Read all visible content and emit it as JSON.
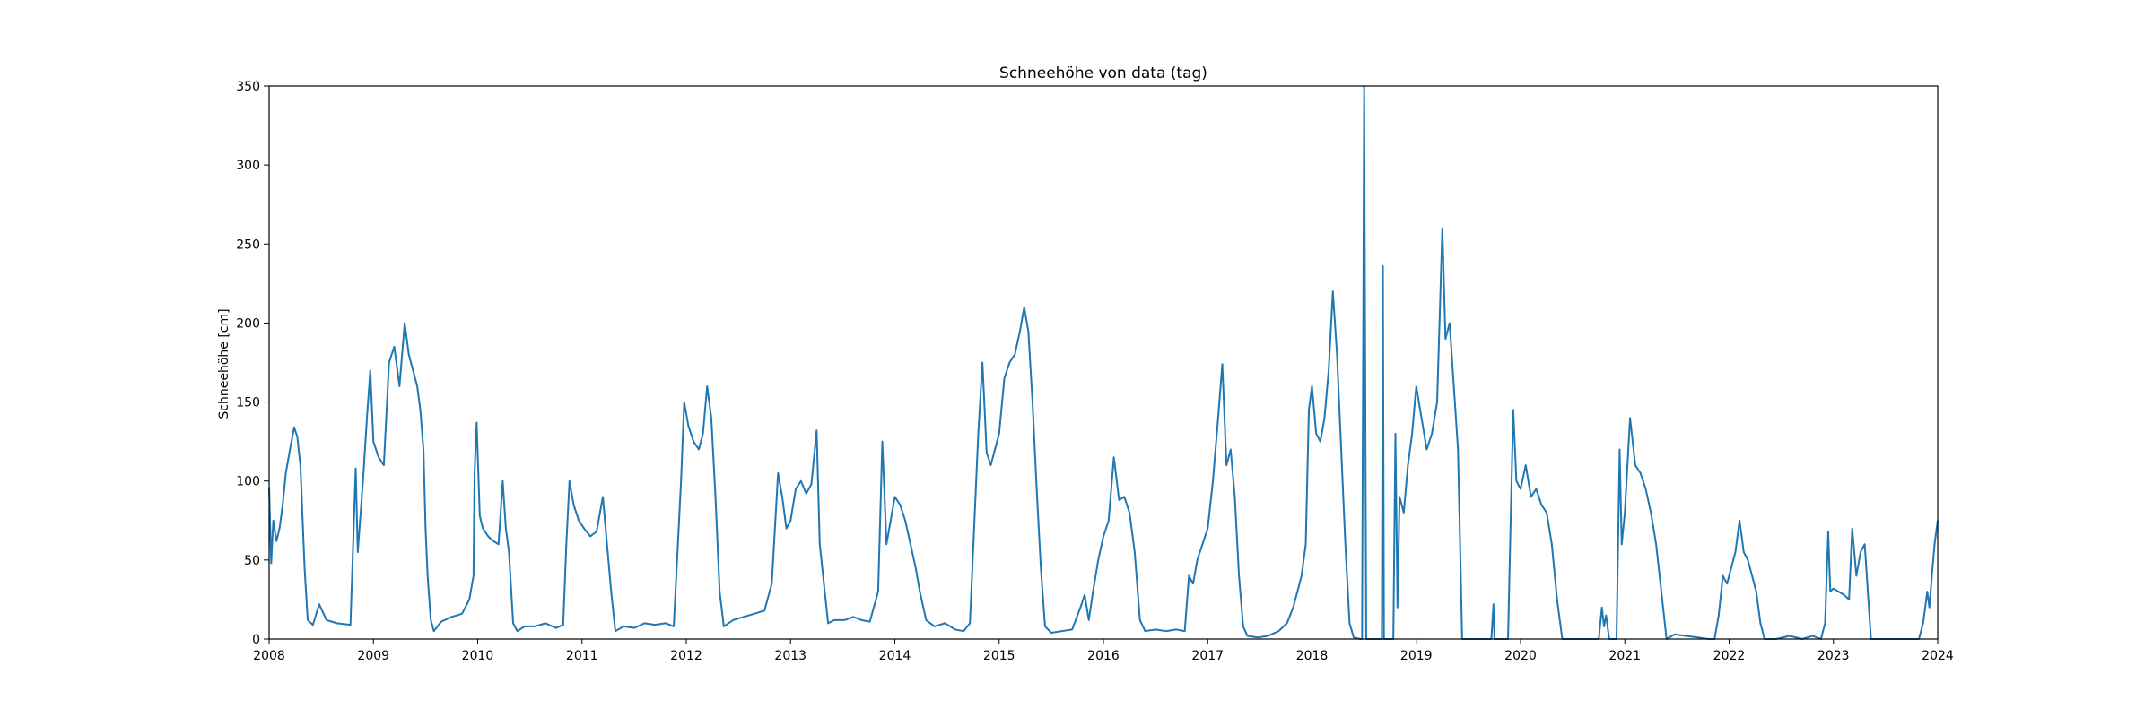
{
  "chart_data": {
    "type": "line",
    "title": "Schneehöhe von data (tag)",
    "xlabel": "",
    "ylabel": "Schneehöhe [cm]",
    "xlim": [
      2008,
      2024
    ],
    "ylim": [
      0,
      350
    ],
    "x_ticks": [
      "2008",
      "2009",
      "2010",
      "2011",
      "2012",
      "2013",
      "2014",
      "2015",
      "2016",
      "2017",
      "2018",
      "2019",
      "2020",
      "2021",
      "2022",
      "2023",
      "2024"
    ],
    "y_ticks": [
      "0",
      "50",
      "100",
      "150",
      "200",
      "250",
      "300",
      "350"
    ],
    "grid": false,
    "legend": "none",
    "series": [
      {
        "color": "#1f77b4",
        "points": [
          [
            2008.0,
            96
          ],
          [
            2008.02,
            48
          ],
          [
            2008.04,
            75
          ],
          [
            2008.07,
            62
          ],
          [
            2008.1,
            70
          ],
          [
            2008.13,
            85
          ],
          [
            2008.16,
            105
          ],
          [
            2008.2,
            120
          ],
          [
            2008.24,
            134
          ],
          [
            2008.27,
            128
          ],
          [
            2008.3,
            110
          ],
          [
            2008.34,
            45
          ],
          [
            2008.37,
            12
          ],
          [
            2008.42,
            9
          ],
          [
            2008.48,
            22
          ],
          [
            2008.55,
            12
          ],
          [
            2008.65,
            10
          ],
          [
            2008.78,
            9
          ],
          [
            2008.83,
            108
          ],
          [
            2008.85,
            55
          ],
          [
            2008.9,
            100
          ],
          [
            2008.94,
            142
          ],
          [
            2008.97,
            170
          ],
          [
            2009.0,
            125
          ],
          [
            2009.05,
            115
          ],
          [
            2009.1,
            110
          ],
          [
            2009.15,
            175
          ],
          [
            2009.2,
            185
          ],
          [
            2009.25,
            160
          ],
          [
            2009.3,
            200
          ],
          [
            2009.34,
            180
          ],
          [
            2009.38,
            170
          ],
          [
            2009.42,
            160
          ],
          [
            2009.45,
            145
          ],
          [
            2009.48,
            120
          ],
          [
            2009.5,
            70
          ],
          [
            2009.52,
            40
          ],
          [
            2009.55,
            12
          ],
          [
            2009.58,
            5
          ],
          [
            2009.65,
            11
          ],
          [
            2009.75,
            14
          ],
          [
            2009.85,
            16
          ],
          [
            2009.92,
            25
          ],
          [
            2009.96,
            40
          ],
          [
            2009.97,
            105
          ],
          [
            2009.99,
            137
          ],
          [
            2010.02,
            78
          ],
          [
            2010.05,
            70
          ],
          [
            2010.1,
            65
          ],
          [
            2010.15,
            62
          ],
          [
            2010.2,
            60
          ],
          [
            2010.24,
            100
          ],
          [
            2010.27,
            70
          ],
          [
            2010.3,
            55
          ],
          [
            2010.34,
            10
          ],
          [
            2010.38,
            5
          ],
          [
            2010.45,
            8
          ],
          [
            2010.55,
            8
          ],
          [
            2010.65,
            10
          ],
          [
            2010.75,
            7
          ],
          [
            2010.82,
            9
          ],
          [
            2010.85,
            60
          ],
          [
            2010.88,
            100
          ],
          [
            2010.92,
            85
          ],
          [
            2010.97,
            75
          ],
          [
            2011.02,
            70
          ],
          [
            2011.08,
            65
          ],
          [
            2011.14,
            68
          ],
          [
            2011.2,
            90
          ],
          [
            2011.24,
            60
          ],
          [
            2011.28,
            30
          ],
          [
            2011.32,
            5
          ],
          [
            2011.4,
            8
          ],
          [
            2011.5,
            7
          ],
          [
            2011.6,
            10
          ],
          [
            2011.7,
            9
          ],
          [
            2011.8,
            10
          ],
          [
            2011.88,
            8
          ],
          [
            2011.95,
            100
          ],
          [
            2011.98,
            150
          ],
          [
            2012.02,
            135
          ],
          [
            2012.07,
            125
          ],
          [
            2012.12,
            120
          ],
          [
            2012.16,
            130
          ],
          [
            2012.2,
            160
          ],
          [
            2012.24,
            140
          ],
          [
            2012.28,
            90
          ],
          [
            2012.32,
            30
          ],
          [
            2012.36,
            8
          ],
          [
            2012.45,
            12
          ],
          [
            2012.55,
            14
          ],
          [
            2012.65,
            16
          ],
          [
            2012.75,
            18
          ],
          [
            2012.82,
            35
          ],
          [
            2012.88,
            105
          ],
          [
            2012.92,
            90
          ],
          [
            2012.96,
            70
          ],
          [
            2013.0,
            75
          ],
          [
            2013.05,
            95
          ],
          [
            2013.1,
            100
          ],
          [
            2013.15,
            92
          ],
          [
            2013.2,
            98
          ],
          [
            2013.25,
            132
          ],
          [
            2013.28,
            60
          ],
          [
            2013.32,
            35
          ],
          [
            2013.36,
            10
          ],
          [
            2013.42,
            12
          ],
          [
            2013.52,
            12
          ],
          [
            2013.6,
            14
          ],
          [
            2013.68,
            12
          ],
          [
            2013.76,
            11
          ],
          [
            2013.84,
            30
          ],
          [
            2013.88,
            125
          ],
          [
            2013.92,
            60
          ],
          [
            2013.96,
            75
          ],
          [
            2014.0,
            90
          ],
          [
            2014.05,
            85
          ],
          [
            2014.1,
            75
          ],
          [
            2014.15,
            60
          ],
          [
            2014.2,
            45
          ],
          [
            2014.24,
            30
          ],
          [
            2014.3,
            12
          ],
          [
            2014.38,
            8
          ],
          [
            2014.48,
            10
          ],
          [
            2014.58,
            6
          ],
          [
            2014.66,
            5
          ],
          [
            2014.72,
            10
          ],
          [
            2014.8,
            130
          ],
          [
            2014.84,
            175
          ],
          [
            2014.88,
            118
          ],
          [
            2014.92,
            110
          ],
          [
            2014.96,
            120
          ],
          [
            2015.0,
            130
          ],
          [
            2015.05,
            165
          ],
          [
            2015.1,
            175
          ],
          [
            2015.15,
            180
          ],
          [
            2015.2,
            195
          ],
          [
            2015.24,
            210
          ],
          [
            2015.28,
            195
          ],
          [
            2015.32,
            150
          ],
          [
            2015.36,
            95
          ],
          [
            2015.4,
            45
          ],
          [
            2015.44,
            8
          ],
          [
            2015.5,
            4
          ],
          [
            2015.6,
            5
          ],
          [
            2015.7,
            6
          ],
          [
            2015.78,
            20
          ],
          [
            2015.82,
            28
          ],
          [
            2015.86,
            12
          ],
          [
            2015.9,
            30
          ],
          [
            2015.95,
            50
          ],
          [
            2016.0,
            65
          ],
          [
            2016.05,
            75
          ],
          [
            2016.1,
            115
          ],
          [
            2016.15,
            88
          ],
          [
            2016.2,
            90
          ],
          [
            2016.25,
            80
          ],
          [
            2016.3,
            55
          ],
          [
            2016.35,
            12
          ],
          [
            2016.4,
            5
          ],
          [
            2016.5,
            6
          ],
          [
            2016.6,
            5
          ],
          [
            2016.7,
            6
          ],
          [
            2016.78,
            5
          ],
          [
            2016.82,
            40
          ],
          [
            2016.86,
            35
          ],
          [
            2016.9,
            50
          ],
          [
            2016.95,
            60
          ],
          [
            2017.0,
            70
          ],
          [
            2017.05,
            100
          ],
          [
            2017.1,
            140
          ],
          [
            2017.14,
            174
          ],
          [
            2017.18,
            110
          ],
          [
            2017.22,
            120
          ],
          [
            2017.26,
            90
          ],
          [
            2017.3,
            40
          ],
          [
            2017.34,
            8
          ],
          [
            2017.38,
            2
          ],
          [
            2017.48,
            1
          ],
          [
            2017.58,
            2
          ],
          [
            2017.68,
            5
          ],
          [
            2017.76,
            10
          ],
          [
            2017.82,
            20
          ],
          [
            2017.86,
            30
          ],
          [
            2017.9,
            40
          ],
          [
            2017.94,
            60
          ],
          [
            2017.97,
            145
          ],
          [
            2018.0,
            160
          ],
          [
            2018.04,
            130
          ],
          [
            2018.08,
            125
          ],
          [
            2018.12,
            140
          ],
          [
            2018.16,
            170
          ],
          [
            2018.2,
            220
          ],
          [
            2018.24,
            180
          ],
          [
            2018.28,
            120
          ],
          [
            2018.32,
            60
          ],
          [
            2018.36,
            10
          ],
          [
            2018.4,
            1
          ],
          [
            2018.46,
            0
          ],
          [
            2018.48,
            0
          ],
          [
            2018.5,
            350
          ],
          [
            2018.52,
            0
          ],
          [
            2018.6,
            0
          ],
          [
            2018.67,
            0
          ],
          [
            2018.68,
            236
          ],
          [
            2018.69,
            0
          ],
          [
            2018.78,
            0
          ],
          [
            2018.8,
            130
          ],
          [
            2018.82,
            20
          ],
          [
            2018.84,
            90
          ],
          [
            2018.88,
            80
          ],
          [
            2018.92,
            110
          ],
          [
            2018.96,
            130
          ],
          [
            2019.0,
            160
          ],
          [
            2019.05,
            140
          ],
          [
            2019.1,
            120
          ],
          [
            2019.15,
            130
          ],
          [
            2019.2,
            150
          ],
          [
            2019.25,
            260
          ],
          [
            2019.28,
            190
          ],
          [
            2019.32,
            200
          ],
          [
            2019.36,
            160
          ],
          [
            2019.4,
            120
          ],
          [
            2019.44,
            0
          ],
          [
            2019.52,
            0
          ],
          [
            2019.65,
            0
          ],
          [
            2019.72,
            0
          ],
          [
            2019.74,
            22
          ],
          [
            2019.75,
            0
          ],
          [
            2019.88,
            0
          ],
          [
            2019.9,
            60
          ],
          [
            2019.93,
            145
          ],
          [
            2019.96,
            100
          ],
          [
            2020.0,
            95
          ],
          [
            2020.05,
            110
          ],
          [
            2020.1,
            90
          ],
          [
            2020.15,
            95
          ],
          [
            2020.2,
            85
          ],
          [
            2020.25,
            80
          ],
          [
            2020.3,
            60
          ],
          [
            2020.35,
            25
          ],
          [
            2020.4,
            0
          ],
          [
            2020.5,
            0
          ],
          [
            2020.65,
            0
          ],
          [
            2020.75,
            0
          ],
          [
            2020.78,
            20
          ],
          [
            2020.8,
            8
          ],
          [
            2020.82,
            15
          ],
          [
            2020.85,
            0
          ],
          [
            2020.92,
            0
          ],
          [
            2020.95,
            120
          ],
          [
            2020.97,
            60
          ],
          [
            2021.0,
            80
          ],
          [
            2021.05,
            140
          ],
          [
            2021.1,
            110
          ],
          [
            2021.15,
            105
          ],
          [
            2021.2,
            95
          ],
          [
            2021.25,
            80
          ],
          [
            2021.3,
            60
          ],
          [
            2021.35,
            30
          ],
          [
            2021.4,
            0
          ],
          [
            2021.48,
            3
          ],
          [
            2021.58,
            2
          ],
          [
            2021.7,
            1
          ],
          [
            2021.8,
            0
          ],
          [
            2021.86,
            0
          ],
          [
            2021.9,
            15
          ],
          [
            2021.94,
            40
          ],
          [
            2021.98,
            35
          ],
          [
            2022.02,
            45
          ],
          [
            2022.06,
            55
          ],
          [
            2022.1,
            75
          ],
          [
            2022.14,
            55
          ],
          [
            2022.18,
            50
          ],
          [
            2022.22,
            40
          ],
          [
            2022.26,
            30
          ],
          [
            2022.3,
            10
          ],
          [
            2022.34,
            0
          ],
          [
            2022.45,
            0
          ],
          [
            2022.58,
            2
          ],
          [
            2022.7,
            0
          ],
          [
            2022.8,
            2
          ],
          [
            2022.88,
            0
          ],
          [
            2022.92,
            10
          ],
          [
            2022.95,
            68
          ],
          [
            2022.97,
            30
          ],
          [
            2023.0,
            32
          ],
          [
            2023.05,
            30
          ],
          [
            2023.1,
            28
          ],
          [
            2023.15,
            25
          ],
          [
            2023.18,
            70
          ],
          [
            2023.22,
            40
          ],
          [
            2023.26,
            55
          ],
          [
            2023.3,
            60
          ],
          [
            2023.34,
            20
          ],
          [
            2023.36,
            0
          ],
          [
            2023.48,
            0
          ],
          [
            2023.6,
            0
          ],
          [
            2023.72,
            0
          ],
          [
            2023.82,
            0
          ],
          [
            2023.86,
            10
          ],
          [
            2023.9,
            30
          ],
          [
            2023.92,
            20
          ],
          [
            2023.95,
            45
          ],
          [
            2023.97,
            60
          ],
          [
            2024.0,
            75
          ]
        ]
      }
    ]
  }
}
